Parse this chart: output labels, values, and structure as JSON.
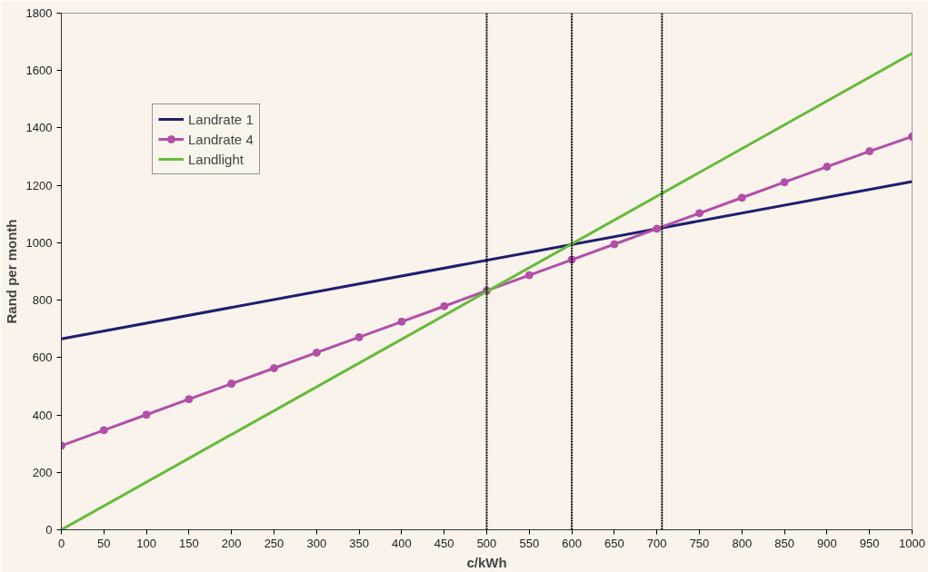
{
  "chart_data": {
    "type": "line",
    "xlabel": "c/kWh",
    "ylabel": "Rand per month",
    "xlim": [
      0,
      1000
    ],
    "xticks": [
      0,
      50,
      100,
      150,
      200,
      250,
      300,
      350,
      400,
      450,
      500,
      550,
      600,
      650,
      700,
      750,
      800,
      850,
      900,
      950,
      1000
    ],
    "ylim": [
      0,
      1800
    ],
    "yticks": [
      0,
      200,
      400,
      600,
      800,
      1000,
      1200,
      1400,
      1600,
      1800
    ],
    "grid": false,
    "legend": "top left",
    "series": [
      {
        "name": "Landrate 1",
        "color": "#1f1f6e",
        "marker": "none",
        "x": [
          0,
          1000
        ],
        "values": [
          665,
          1213
        ]
      },
      {
        "name": "Landrate 4",
        "color": "#b24fa8",
        "marker": "circle",
        "x": [
          0,
          50,
          100,
          150,
          200,
          250,
          300,
          350,
          400,
          450,
          500,
          550,
          600,
          650,
          700,
          750,
          800,
          850,
          900,
          950,
          1000
        ],
        "values": [
          293,
          347,
          401,
          455,
          509,
          563,
          617,
          671,
          725,
          779,
          833,
          887,
          941,
          995,
          1049,
          1103,
          1157,
          1211,
          1265,
          1319,
          1370
        ]
      },
      {
        "name": "Landlight",
        "color": "#66bb3a",
        "marker": "none",
        "x": [
          0,
          1000
        ],
        "values": [
          0,
          1660
        ]
      }
    ],
    "ref_lines": [
      {
        "axis": "x",
        "value": 500,
        "color": "#000000",
        "line_style": "dotted"
      },
      {
        "axis": "x",
        "value": 600,
        "color": "#000000",
        "line_style": "dotted"
      },
      {
        "axis": "x",
        "value": 706,
        "color": "#000000",
        "line_style": "dotted"
      }
    ]
  }
}
